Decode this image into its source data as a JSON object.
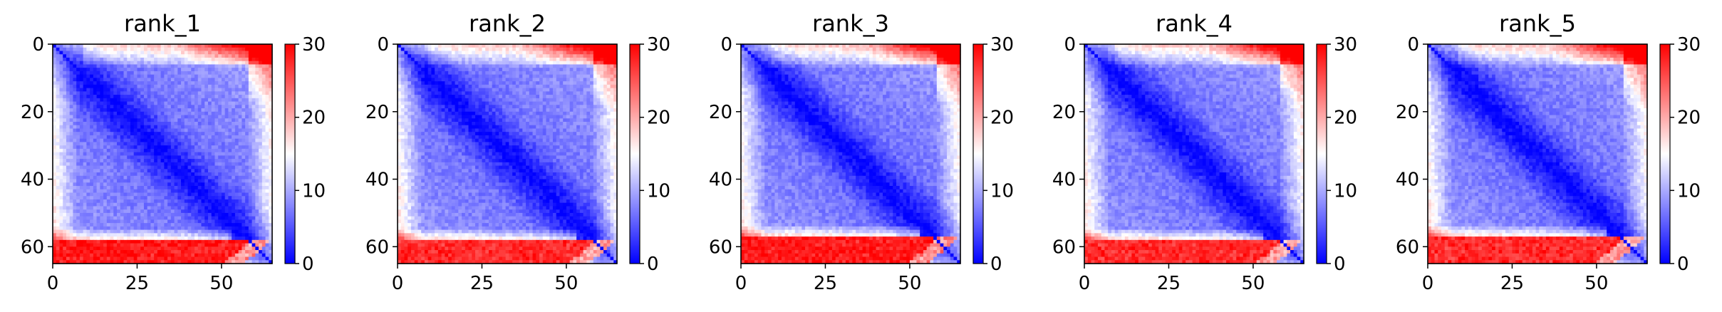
{
  "chart_data": [
    {
      "type": "heatmap",
      "title": "rank_1",
      "matrix_size": 65,
      "xticks": [
        0,
        25,
        50
      ],
      "yticks": [
        0,
        20,
        40,
        60
      ],
      "xlim": [
        0,
        65
      ],
      "ylim": [
        65,
        0
      ],
      "colorbar": {
        "ticks": [
          0,
          10,
          20,
          30
        ],
        "range": [
          0,
          30
        ],
        "colormap": "bwr"
      },
      "pattern": {
        "diagonal": 0,
        "interior_min": 6,
        "bottom_band_start_row": 58,
        "band_value": 29,
        "top_right_value": 27,
        "seed": 11
      }
    },
    {
      "type": "heatmap",
      "title": "rank_2",
      "matrix_size": 65,
      "xticks": [
        0,
        25,
        50
      ],
      "yticks": [
        0,
        20,
        40,
        60
      ],
      "xlim": [
        0,
        65
      ],
      "ylim": [
        65,
        0
      ],
      "colorbar": {
        "ticks": [
          0,
          10,
          20,
          30
        ],
        "range": [
          0,
          30
        ],
        "colormap": "bwr"
      },
      "pattern": {
        "diagonal": 0,
        "interior_min": 6,
        "bottom_band_start_row": 58,
        "band_value": 28,
        "top_right_value": 27,
        "seed": 23
      }
    },
    {
      "type": "heatmap",
      "title": "rank_3",
      "matrix_size": 65,
      "xticks": [
        0,
        25,
        50
      ],
      "yticks": [
        0,
        20,
        40,
        60
      ],
      "xlim": [
        0,
        65
      ],
      "ylim": [
        65,
        0
      ],
      "colorbar": {
        "ticks": [
          0,
          10,
          20,
          30
        ],
        "range": [
          0,
          30
        ],
        "colormap": "bwr"
      },
      "pattern": {
        "diagonal": 0,
        "interior_min": 6,
        "bottom_band_start_row": 57,
        "band_value": 29,
        "top_right_value": 28,
        "seed": 37
      }
    },
    {
      "type": "heatmap",
      "title": "rank_4",
      "matrix_size": 65,
      "xticks": [
        0,
        25,
        50
      ],
      "yticks": [
        0,
        20,
        40,
        60
      ],
      "xlim": [
        0,
        65
      ],
      "ylim": [
        65,
        0
      ],
      "colorbar": {
        "ticks": [
          0,
          10,
          20,
          30
        ],
        "range": [
          0,
          30
        ],
        "colormap": "bwr"
      },
      "pattern": {
        "diagonal": 0,
        "interior_min": 6,
        "bottom_band_start_row": 58,
        "band_value": 28,
        "top_right_value": 26,
        "seed": 51
      }
    },
    {
      "type": "heatmap",
      "title": "rank_5",
      "matrix_size": 65,
      "xticks": [
        0,
        25,
        50
      ],
      "yticks": [
        0,
        20,
        40,
        60
      ],
      "xlim": [
        0,
        65
      ],
      "ylim": [
        65,
        0
      ],
      "colorbar": {
        "ticks": [
          0,
          10,
          20,
          30
        ],
        "range": [
          0,
          30
        ],
        "colormap": "bwr"
      },
      "pattern": {
        "diagonal": 0,
        "interior_min": 6,
        "bottom_band_start_row": 57,
        "band_value": 28,
        "top_right_value": 27,
        "seed": 67
      }
    }
  ]
}
